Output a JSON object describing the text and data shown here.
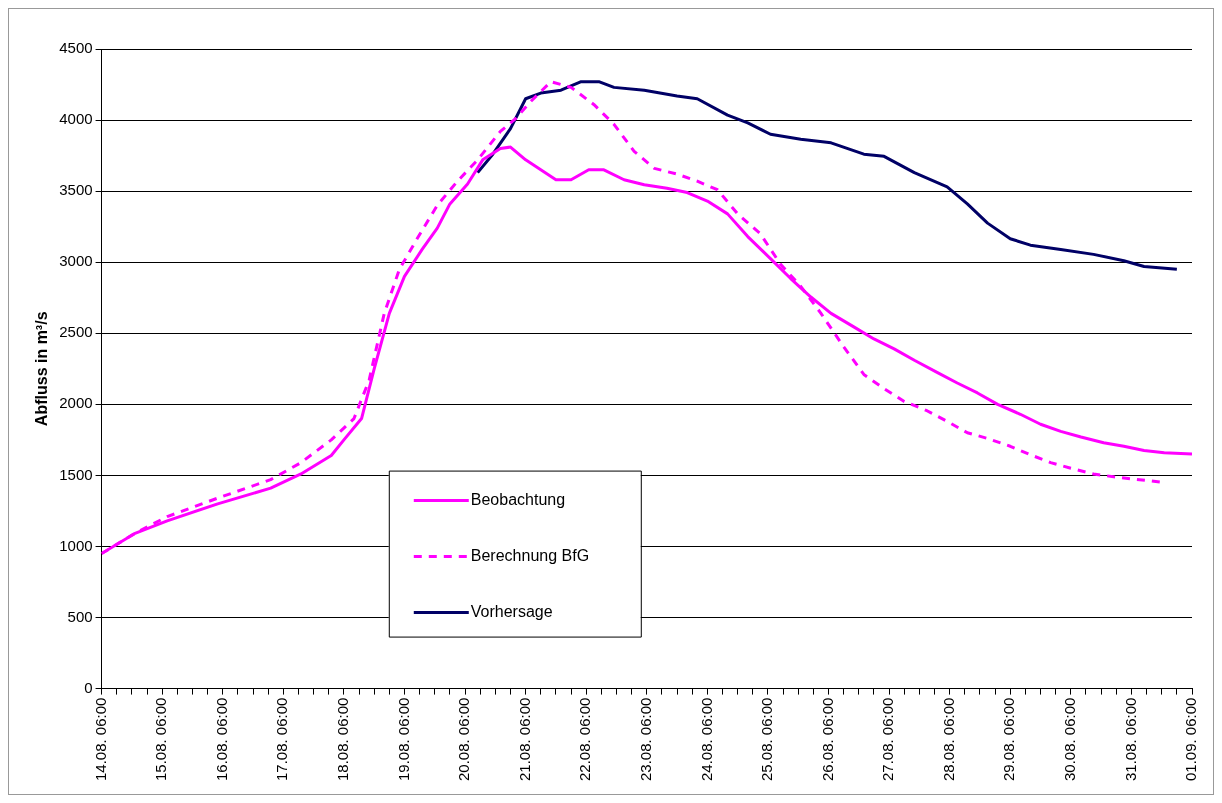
{
  "chart_data": {
    "type": "line",
    "ylabel": "Abfluss in m³/s",
    "xlim": [
      "--08-14T06:00",
      "--09-01T06:00"
    ],
    "ylim": [
      0,
      4500
    ],
    "yticks": [
      0,
      500,
      1000,
      1500,
      2000,
      2500,
      3000,
      3500,
      4000,
      4500
    ],
    "xticks": [
      {
        "value": "--08-14T06:00",
        "label": "14.08. 06:00"
      },
      {
        "value": "--08-14T12:00",
        "label": null
      },
      {
        "value": "--08-14T18:00",
        "label": null
      },
      {
        "value": "--08-15T00:00",
        "label": null
      },
      {
        "value": "--08-15T06:00",
        "label": "15.08. 06:00"
      },
      {
        "value": "--08-15T12:00",
        "label": null
      },
      {
        "value": "--08-15T18:00",
        "label": null
      },
      {
        "value": "--08-16T00:00",
        "label": null
      },
      {
        "value": "--08-16T06:00",
        "label": "16.08. 06:00"
      },
      {
        "value": "--08-16T12:00",
        "label": null
      },
      {
        "value": "--08-16T18:00",
        "label": null
      },
      {
        "value": "--08-17T00:00",
        "label": null
      },
      {
        "value": "--08-17T06:00",
        "label": "17.08. 06:00"
      },
      {
        "value": "--08-17T12:00",
        "label": null
      },
      {
        "value": "--08-17T18:00",
        "label": null
      },
      {
        "value": "--08-18T00:00",
        "label": null
      },
      {
        "value": "--08-18T06:00",
        "label": "18.08. 06:00"
      },
      {
        "value": "--08-18T12:00",
        "label": null
      },
      {
        "value": "--08-18T18:00",
        "label": null
      },
      {
        "value": "--08-19T00:00",
        "label": null
      },
      {
        "value": "--08-19T06:00",
        "label": "19.08. 06:00"
      },
      {
        "value": "--08-19T12:00",
        "label": null
      },
      {
        "value": "--08-19T18:00",
        "label": null
      },
      {
        "value": "--08-20T00:00",
        "label": null
      },
      {
        "value": "--08-20T06:00",
        "label": "20.08. 06:00"
      },
      {
        "value": "--08-20T12:00",
        "label": null
      },
      {
        "value": "--08-20T18:00",
        "label": null
      },
      {
        "value": "--08-21T00:00",
        "label": null
      },
      {
        "value": "--08-21T06:00",
        "label": "21.08. 06:00"
      },
      {
        "value": "--08-21T12:00",
        "label": null
      },
      {
        "value": "--08-21T18:00",
        "label": null
      },
      {
        "value": "--08-22T00:00",
        "label": null
      },
      {
        "value": "--08-22T06:00",
        "label": "22.08. 06:00"
      },
      {
        "value": "--08-22T12:00",
        "label": null
      },
      {
        "value": "--08-22T18:00",
        "label": null
      },
      {
        "value": "--08-23T00:00",
        "label": null
      },
      {
        "value": "--08-23T06:00",
        "label": "23.08. 06:00"
      },
      {
        "value": "--08-23T12:00",
        "label": null
      },
      {
        "value": "--08-23T18:00",
        "label": null
      },
      {
        "value": "--08-24T00:00",
        "label": null
      },
      {
        "value": "--08-24T06:00",
        "label": "24.08. 06:00"
      },
      {
        "value": "--08-24T12:00",
        "label": null
      },
      {
        "value": "--08-24T18:00",
        "label": null
      },
      {
        "value": "--08-25T00:00",
        "label": null
      },
      {
        "value": "--08-25T06:00",
        "label": "25.08. 06:00"
      },
      {
        "value": "--08-25T12:00",
        "label": null
      },
      {
        "value": "--08-25T18:00",
        "label": null
      },
      {
        "value": "--08-26T00:00",
        "label": null
      },
      {
        "value": "--08-26T06:00",
        "label": "26.08. 06:00"
      },
      {
        "value": "--08-26T12:00",
        "label": null
      },
      {
        "value": "--08-26T18:00",
        "label": null
      },
      {
        "value": "--08-27T00:00",
        "label": null
      },
      {
        "value": "--08-27T06:00",
        "label": "27.08. 06:00"
      },
      {
        "value": "--08-27T12:00",
        "label": null
      },
      {
        "value": "--08-27T18:00",
        "label": null
      },
      {
        "value": "--08-28T00:00",
        "label": null
      },
      {
        "value": "--08-28T06:00",
        "label": "28.08. 06:00"
      },
      {
        "value": "--08-28T12:00",
        "label": null
      },
      {
        "value": "--08-28T18:00",
        "label": null
      },
      {
        "value": "--08-29T00:00",
        "label": null
      },
      {
        "value": "--08-29T06:00",
        "label": "29.08. 06:00"
      },
      {
        "value": "--08-29T12:00",
        "label": null
      },
      {
        "value": "--08-29T18:00",
        "label": null
      },
      {
        "value": "--08-30T00:00",
        "label": null
      },
      {
        "value": "--08-30T06:00",
        "label": "30.08. 06:00"
      },
      {
        "value": "--08-30T12:00",
        "label": null
      },
      {
        "value": "--08-30T18:00",
        "label": null
      },
      {
        "value": "--08-31T00:00",
        "label": null
      },
      {
        "value": "--08-31T06:00",
        "label": "31.08. 06:00"
      },
      {
        "value": "--08-31T12:00",
        "label": null
      },
      {
        "value": "--08-31T18:00",
        "label": null
      },
      {
        "value": "--09-01T00:00",
        "label": null
      },
      {
        "value": "--09-01T06:00",
        "label": "01.09. 06:00"
      }
    ],
    "grid": "y",
    "legend": "bottom",
    "marker": "none",
    "series": [
      {
        "name": "Beobachtung",
        "color": "#ff00ff",
        "line_style": "solid",
        "x": [
          "--08-14T06:00",
          "--08-14T19:00",
          "--08-15T08:00",
          "--08-16T04:00",
          "--08-17T01:00",
          "--08-17T13:00",
          "--08-18T01:00",
          "--08-18T06:00",
          "--08-18T13:00",
          "--08-18T18:00",
          "--08-19T00:00",
          "--08-19T06:00",
          "--08-19T13:00",
          "--08-19T19:00",
          "--08-20T00:00",
          "--08-20T07:00",
          "--08-20T13:00",
          "--08-20T20:00",
          "--08-21T00:00",
          "--08-21T06:00",
          "--08-21T12:00",
          "--08-21T18:00",
          "--08-22T00:00",
          "--08-22T07:00",
          "--08-22T13:00",
          "--08-22T21:00",
          "--08-23T05:00",
          "--08-23T14:00",
          "--08-23T22:00",
          "--08-24T06:00",
          "--08-24T14:00",
          "--08-24T22:00",
          "--08-25T07:00",
          "--08-25T15:00",
          "--08-25T23:00",
          "--08-26T07:00",
          "--08-26T16:00",
          "--08-27T00:00",
          "--08-27T08:00",
          "--08-27T16:00",
          "--08-28T01:00",
          "--08-28T09:00",
          "--08-28T17:00",
          "--08-29T01:00",
          "--08-29T10:00",
          "--08-29T18:00",
          "--08-30T02:00",
          "--08-30T10:00",
          "--08-30T19:00",
          "--08-31T03:00",
          "--08-31T11:00",
          "--08-31T19:00",
          "--09-01T06:00"
        ],
        "values": [
          950,
          1090,
          1180,
          1300,
          1410,
          1510,
          1640,
          1750,
          1900,
          2250,
          2640,
          2900,
          3090,
          3240,
          3410,
          3550,
          3720,
          3800,
          3810,
          3720,
          3650,
          3580,
          3580,
          3650,
          3650,
          3580,
          3545,
          3520,
          3490,
          3430,
          3340,
          3180,
          3025,
          2885,
          2755,
          2640,
          2545,
          2460,
          2390,
          2310,
          2225,
          2150,
          2080,
          2000,
          1930,
          1860,
          1810,
          1770,
          1730,
          1705,
          1675,
          1660,
          1650
        ]
      },
      {
        "name": "Berechnung BfG",
        "color": "#ff00ff",
        "line_style": "dashed",
        "x": [
          "--08-14T06:00",
          "--08-14T19:00",
          "--08-15T08:00",
          "--08-16T04:00",
          "--08-17T01:00",
          "--08-17T13:00",
          "--08-18T01:00",
          "--08-18T10:00",
          "--08-18T16:00",
          "--08-18T22:00",
          "--08-19T04:00",
          "--08-19T11:00",
          "--08-19T19:00",
          "--08-20T03:00",
          "--08-20T11:00",
          "--08-20T20:00",
          "--08-21T02:00",
          "--08-21T08:00",
          "--08-21T16:00",
          "--08-22T00:00",
          "--08-22T09:00",
          "--08-22T17:00",
          "--08-23T01:00",
          "--08-23T09:00",
          "--08-23T18:00",
          "--08-24T02:00",
          "--08-24T10:00",
          "--08-24T18:00",
          "--08-25T03:00",
          "--08-25T11:00",
          "--08-25T19:00",
          "--08-26T03:00",
          "--08-26T12:00",
          "--08-26T20:00",
          "--08-27T04:00",
          "--08-27T12:00",
          "--08-27T21:00",
          "--08-28T05:00",
          "--08-28T13:00",
          "--08-28T21:00",
          "--08-29T06:00",
          "--08-29T14:00",
          "--08-29T22:00",
          "--08-30T06:00",
          "--08-30T15:00",
          "--08-30T23:00",
          "--08-31T19:00"
        ],
        "values": [
          950,
          1090,
          1210,
          1340,
          1470,
          1590,
          1750,
          1900,
          2170,
          2640,
          2950,
          3165,
          3400,
          3570,
          3720,
          3920,
          4010,
          4130,
          4270,
          4230,
          4110,
          3970,
          3780,
          3660,
          3620,
          3570,
          3510,
          3340,
          3200,
          2985,
          2830,
          2640,
          2405,
          2210,
          2110,
          2020,
          1955,
          1880,
          1800,
          1760,
          1705,
          1645,
          1590,
          1550,
          1510,
          1490,
          1450
        ]
      },
      {
        "name": "Vorhersage",
        "color": "#000066",
        "line_style": "solid",
        "x": [
          "--08-20T11:00",
          "--08-20T17:00",
          "--08-21T00:00",
          "--08-21T06:00",
          "--08-21T12:00",
          "--08-21T20:00",
          "--08-22T04:00",
          "--08-22T11:00",
          "--08-22T17:00",
          "--08-23T05:00",
          "--08-23T18:00",
          "--08-24T02:00",
          "--08-24T14:00",
          "--08-24T22:00",
          "--08-25T07:00",
          "--08-25T19:00",
          "--08-26T07:00",
          "--08-26T20:00",
          "--08-27T04:00",
          "--08-27T16:00",
          "--08-28T05:00",
          "--08-28T13:00",
          "--08-28T21:00",
          "--08-29T06:00",
          "--08-29T14:00",
          "--08-30T02:00",
          "--08-30T15:00",
          "--08-31T03:00",
          "--08-31T11:00",
          "--09-01T00:00"
        ],
        "values": [
          3630,
          3760,
          3940,
          4150,
          4190,
          4210,
          4270,
          4270,
          4230,
          4210,
          4170,
          4150,
          4035,
          3980,
          3900,
          3865,
          3840,
          3760,
          3745,
          3630,
          3530,
          3410,
          3275,
          3165,
          3120,
          3090,
          3055,
          3010,
          2970,
          2950
        ]
      }
    ]
  }
}
